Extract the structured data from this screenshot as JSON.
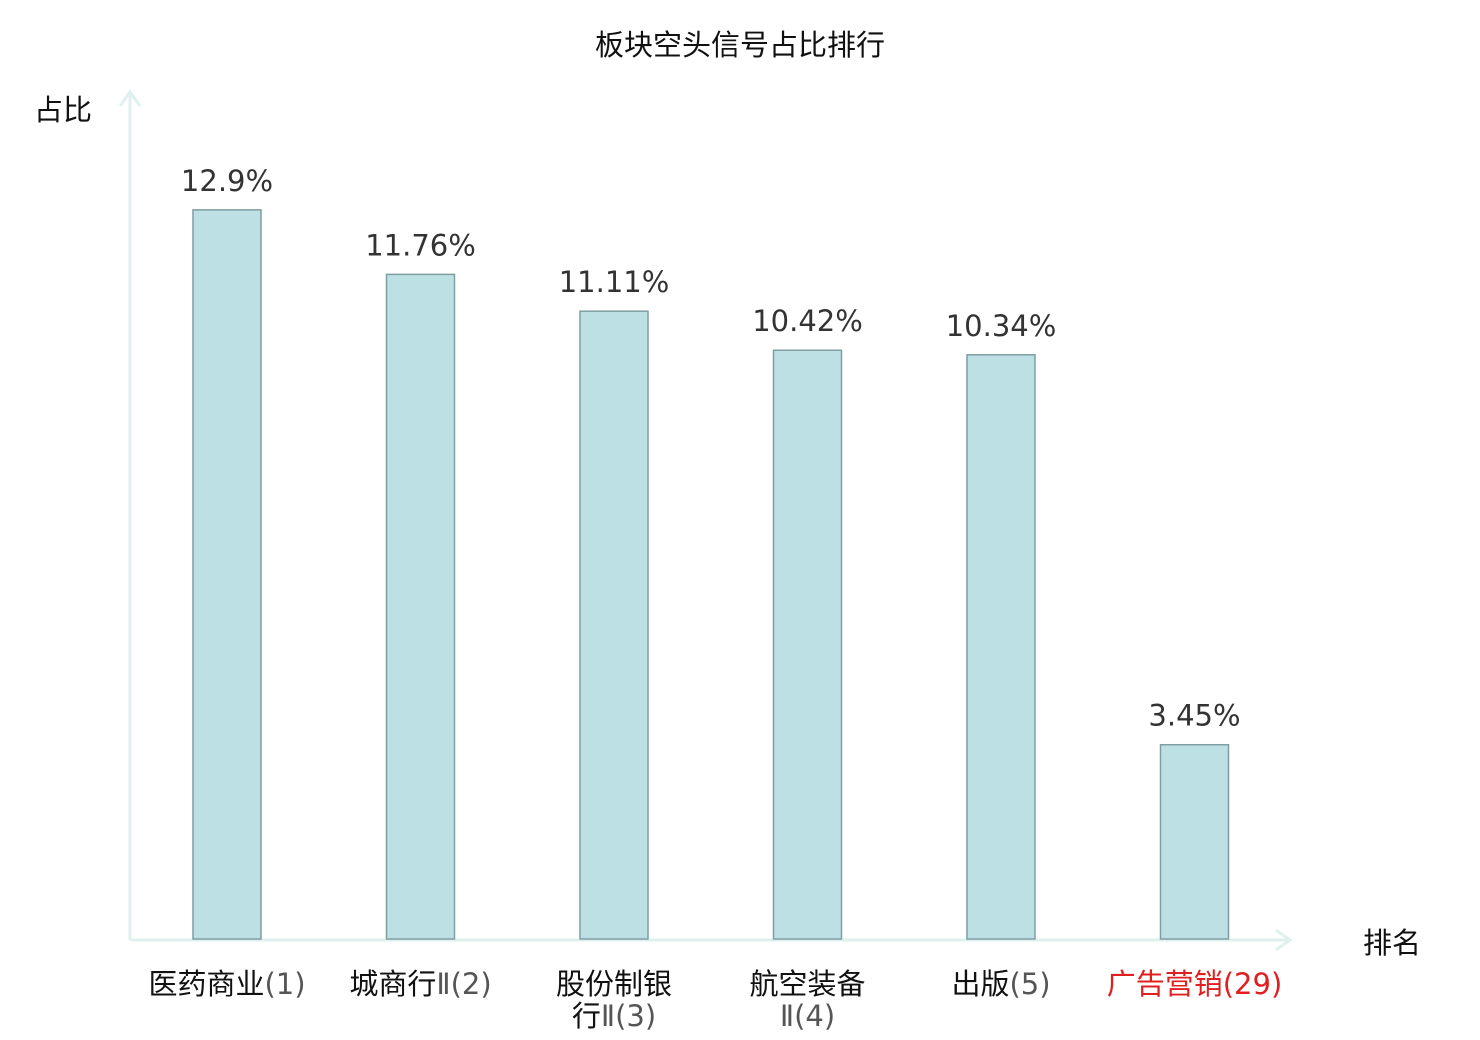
{
  "chart_data": {
    "type": "bar",
    "title": "板块空头信号占比排行",
    "ylabel": "占比",
    "xlabel": "排名",
    "unit": "%",
    "categories": [
      "医药商业(1)",
      "城商行Ⅱ(2)",
      "股份制银行Ⅱ(3)",
      "航空装备Ⅱ(4)",
      "出版(5)",
      "广告营销(29)"
    ],
    "tick_labels": [
      [
        {
          "name": "医药商业",
          "rank": "(1)"
        }
      ],
      [
        {
          "name": "城商行",
          "rank": "Ⅱ(2)"
        }
      ],
      [
        {
          "name": "股份制银",
          "rank": ""
        },
        {
          "name": "行",
          "rank": "Ⅱ(3)"
        }
      ],
      [
        {
          "name": "航空装备",
          "rank": ""
        },
        {
          "name": "",
          "rank": "Ⅱ(4)"
        }
      ],
      [
        {
          "name": "出版",
          "rank": "(5)"
        }
      ],
      [
        {
          "name": "广告营销",
          "rank": "(29)"
        }
      ]
    ],
    "values": [
      12.9,
      11.76,
      11.11,
      10.42,
      10.34,
      3.45
    ],
    "value_labels": [
      "12.9%",
      "11.76%",
      "11.11%",
      "10.42%",
      "10.34%",
      "3.45%"
    ],
    "highlight_index": 5,
    "ylim": [
      0,
      14
    ],
    "grid": false,
    "colors": {
      "bar_fill": "#bce0e3",
      "bar_stroke": "#7f9ea3",
      "axis": "#dff1ef",
      "text": "#222222",
      "tick_text": "#555555",
      "highlight": "#e02020"
    }
  }
}
